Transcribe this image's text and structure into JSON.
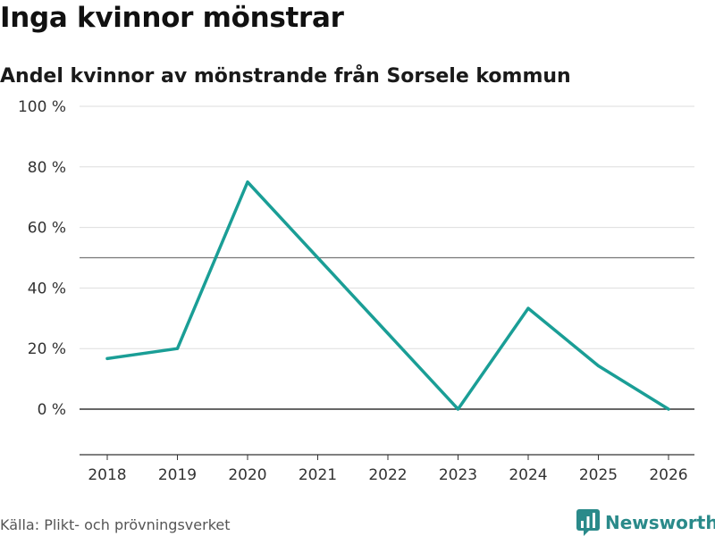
{
  "title": "Inga kvinnor mönstrar",
  "subtitle": "Andel kvinnor av mönstrande från Sorsele kommun",
  "source": "Källa: Plikt- och prövningsverket",
  "brand": "Newsworthy",
  "colors": {
    "line": "#1a9e96",
    "grid": "#dddddd",
    "zero": "#333333",
    "reference": "#777777",
    "brand": "#2a8a8a"
  },
  "chart_data": {
    "type": "line",
    "title": "Inga kvinnor mönstrar",
    "subtitle": "Andel kvinnor av mönstrande från Sorsele kommun",
    "xlabel": "",
    "ylabel": "",
    "categories": [
      "2018",
      "2019",
      "2020",
      "2021",
      "2022",
      "2023",
      "2024",
      "2025",
      "2026"
    ],
    "series": [
      {
        "name": "Andel kvinnor",
        "x": [
          "2018",
          "2019",
          "2020",
          "2021",
          "2022",
          "2023",
          "2024",
          "2025",
          "2026"
        ],
        "values": [
          16.7,
          20,
          75,
          50,
          25,
          0,
          33.3,
          14.3,
          0
        ]
      }
    ],
    "ylim": [
      -15,
      100
    ],
    "yticks": [
      0,
      20,
      40,
      60,
      80,
      100
    ],
    "ytick_labels": [
      "0 %",
      "20 %",
      "40 %",
      "60 %",
      "80 %",
      "100 %"
    ],
    "reference_line": 50,
    "grid": true,
    "legend": "none"
  }
}
